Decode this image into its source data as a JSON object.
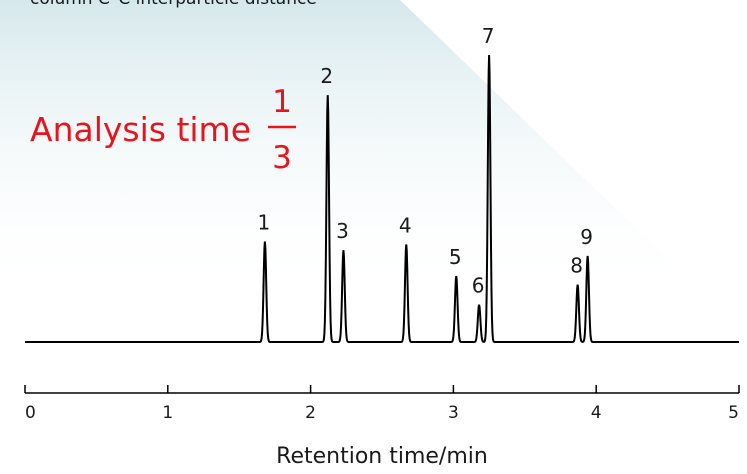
{
  "header": {
    "cut_off_text": "column C–C interparticle distance"
  },
  "annotation": {
    "text": "Analysis time",
    "fraction_numerator": "1",
    "fraction_denominator": "3",
    "color": "#e8141b"
  },
  "chart_data": {
    "type": "line",
    "xlabel": "Retention time/min",
    "xlim": [
      0,
      5
    ],
    "x_ticks": [
      0,
      1,
      2,
      3,
      4,
      5
    ],
    "x_tick_labels": [
      "0",
      "1",
      "2",
      "3",
      "4",
      "5"
    ],
    "grid": false,
    "peaks": [
      {
        "label": "1",
        "rt": 1.68,
        "height": 0.35
      },
      {
        "label": "2",
        "rt": 2.12,
        "height": 0.86
      },
      {
        "label": "3",
        "rt": 2.23,
        "height": 0.32
      },
      {
        "label": "4",
        "rt": 2.67,
        "height": 0.34
      },
      {
        "label": "5",
        "rt": 3.02,
        "height": 0.23
      },
      {
        "label": "6",
        "rt": 3.18,
        "height": 0.13
      },
      {
        "label": "7",
        "rt": 3.25,
        "height": 1.0
      },
      {
        "label": "8",
        "rt": 3.87,
        "height": 0.2
      },
      {
        "label": "9",
        "rt": 3.94,
        "height": 0.3
      }
    ],
    "line_color": "#000000",
    "background_gradient_color": "#dcebee"
  }
}
